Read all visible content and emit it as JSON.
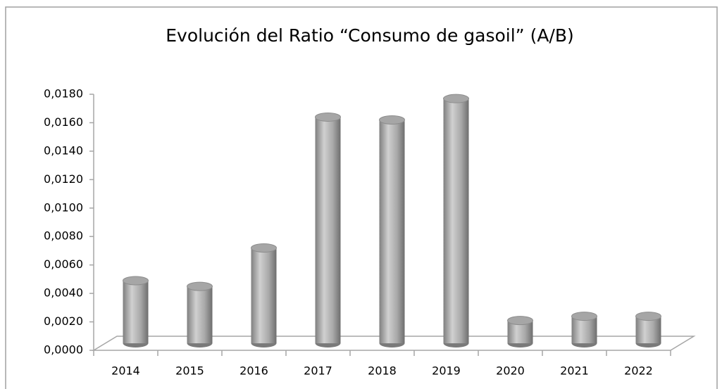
{
  "chart_data": {
    "type": "bar",
    "title": "Evolución del Ratio “Consumo de gasoil” (A/B)",
    "categories": [
      "2014",
      "2015",
      "2016",
      "2017",
      "2018",
      "2019",
      "2020",
      "2021",
      "2022"
    ],
    "values": [
      0.0044,
      0.004,
      0.0067,
      0.0159,
      0.0157,
      0.0172,
      0.0016,
      0.0019,
      0.0019
    ],
    "color": "#a6a6a6",
    "ylim": [
      0,
      0.018
    ],
    "yticks": [
      {
        "value": 0,
        "label": "0,0000"
      },
      {
        "value": 0.002,
        "label": "0,0020"
      },
      {
        "value": 0.004,
        "label": "0,0040"
      },
      {
        "value": 0.006,
        "label": "0,0060"
      },
      {
        "value": 0.008,
        "label": "0,0080"
      },
      {
        "value": 0.01,
        "label": "0,0100"
      },
      {
        "value": 0.012,
        "label": "0,0120"
      },
      {
        "value": 0.014,
        "label": "0,0140"
      },
      {
        "value": 0.016,
        "label": "0,0160"
      },
      {
        "value": 0.018,
        "label": "0,0180"
      }
    ],
    "grid": false
  }
}
